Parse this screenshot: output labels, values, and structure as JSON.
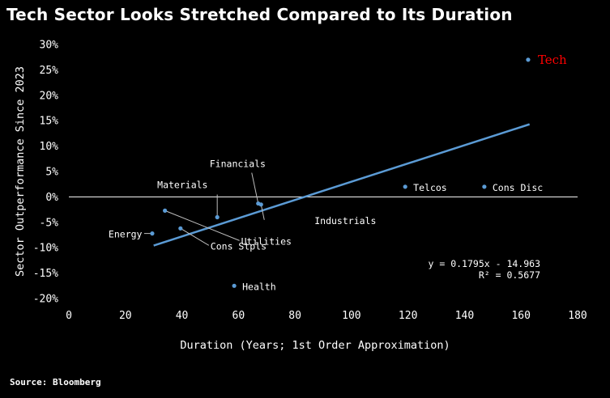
{
  "title": "Tech Sector Looks Stretched Compared to Its Duration",
  "source": "Source: Bloomberg",
  "chart_data": {
    "type": "scatter",
    "title": "Tech Sector Looks Stretched Compared to Its Duration",
    "xlabel": "Duration (Years; 1st Order Approximation)",
    "ylabel": "Sector Outperformance Since 2023",
    "xlim": [
      0,
      180
    ],
    "ylim": [
      -20,
      30
    ],
    "x_ticks": [
      "0",
      "20",
      "40",
      "60",
      "80",
      "100",
      "120",
      "140",
      "160",
      "180"
    ],
    "y_ticks": [
      "-20%",
      "-15%",
      "-10%",
      "-5%",
      "0%",
      "5%",
      "10%",
      "15%",
      "20%",
      "25%",
      "30%"
    ],
    "grid": false,
    "point_color": "#5b9bd5",
    "highlight_color": "#ff0000",
    "points": [
      {
        "name": "Tech",
        "x": 162.5,
        "y": 27.0,
        "highlight": true
      },
      {
        "name": "Cons Disc",
        "x": 147,
        "y": 2.0
      },
      {
        "name": "Telcos",
        "x": 119,
        "y": 2.0
      },
      {
        "name": "Industrials",
        "x": 68,
        "y": -1.5
      },
      {
        "name": "Financials",
        "x": 67,
        "y": -1.3
      },
      {
        "name": "Materials",
        "x": 52.5,
        "y": -4.0
      },
      {
        "name": "Utilities",
        "x": 34,
        "y": -2.7
      },
      {
        "name": "Cons Stpls",
        "x": 39.5,
        "y": -6.2
      },
      {
        "name": "Energy",
        "x": 29.5,
        "y": -7.2
      },
      {
        "name": "Health",
        "x": 58.5,
        "y": -17.5
      }
    ],
    "trendline": {
      "slope": 0.1795,
      "intercept": -14.963,
      "x_range": [
        30,
        163
      ],
      "equation": "y = 0.1795x - 14.963",
      "r_squared": "R² = 0.5677"
    }
  }
}
